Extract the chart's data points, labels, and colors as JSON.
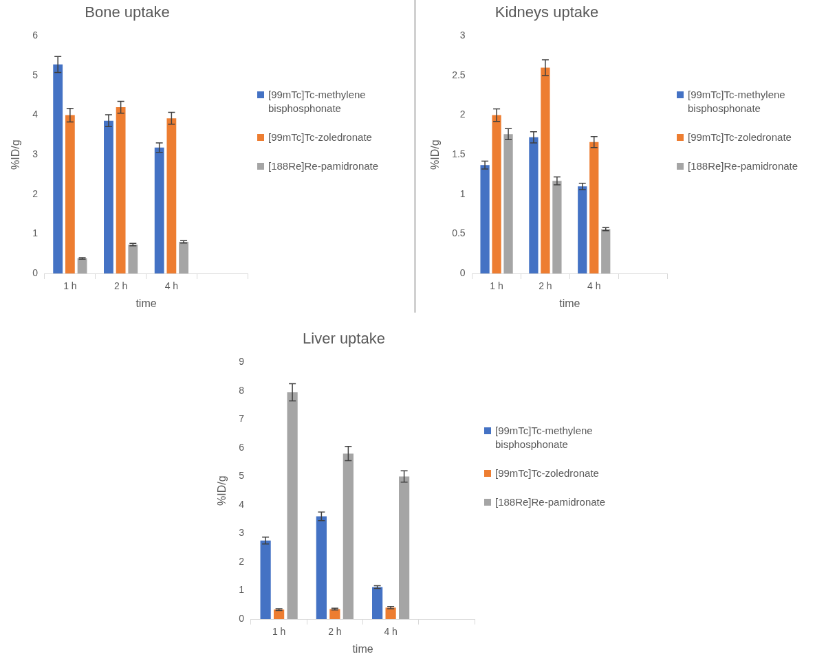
{
  "chart_data": [
    {
      "type": "bar",
      "title": "Bone uptake",
      "xlabel": "time",
      "ylabel": "%ID/g",
      "categories": [
        "1 h",
        "2 h",
        "4 h",
        null
      ],
      "ylim": [
        0,
        6
      ],
      "yticks": [
        0,
        1,
        2,
        3,
        4,
        5,
        6
      ],
      "grid": false,
      "legend": "right",
      "series": [
        {
          "name": "[99mTc]Tc-methylene bisphosphonate",
          "color": "#4472c4",
          "values": [
            5.28,
            3.86,
            3.18,
            null
          ],
          "errors": [
            0.2,
            0.15,
            0.12,
            null
          ]
        },
        {
          "name": "[99mTc]Tc-zoledronate",
          "color": "#ed7d31",
          "values": [
            4.0,
            4.2,
            3.92,
            null
          ],
          "errors": [
            0.17,
            0.15,
            0.15,
            null
          ]
        },
        {
          "name": "[188Re]Re-pamidronate",
          "color": "#a5a5a5",
          "values": [
            0.38,
            0.73,
            0.8,
            null
          ],
          "errors": [
            0.02,
            0.03,
            0.03,
            null
          ]
        }
      ]
    },
    {
      "type": "bar",
      "title": "Kidneys uptake",
      "xlabel": "time",
      "ylabel": "%ID/g",
      "categories": [
        "1 h",
        "2 h",
        "4 h",
        null
      ],
      "ylim": [
        0,
        3
      ],
      "yticks": [
        0,
        0.5,
        1,
        1.5,
        2,
        2.5,
        3
      ],
      "grid": false,
      "legend": "right",
      "series": [
        {
          "name": "[99mTc]Tc-methylene bisphosphonate",
          "color": "#4472c4",
          "values": [
            1.37,
            1.72,
            1.1,
            null
          ],
          "errors": [
            0.05,
            0.07,
            0.04,
            null
          ]
        },
        {
          "name": "[99mTc]Tc-zoledronate",
          "color": "#ed7d31",
          "values": [
            2.0,
            2.6,
            1.66,
            null
          ],
          "errors": [
            0.08,
            0.1,
            0.07,
            null
          ]
        },
        {
          "name": "[188Re]Re-pamidronate",
          "color": "#a5a5a5",
          "values": [
            1.76,
            1.17,
            0.56,
            null
          ],
          "errors": [
            0.07,
            0.05,
            0.02,
            null
          ]
        }
      ]
    },
    {
      "type": "bar",
      "title": "Liver uptake",
      "xlabel": "time",
      "ylabel": "%ID/g",
      "categories": [
        "1 h",
        "2 h",
        "4 h",
        null
      ],
      "ylim": [
        0,
        9
      ],
      "yticks": [
        0,
        1,
        2,
        3,
        4,
        5,
        6,
        7,
        8,
        9
      ],
      "grid": false,
      "legend": "right",
      "series": [
        {
          "name": "[99mTc]Tc-methylene bisphosphonate",
          "color": "#4472c4",
          "values": [
            2.75,
            3.6,
            1.12,
            null
          ],
          "errors": [
            0.12,
            0.15,
            0.05,
            null
          ]
        },
        {
          "name": "[99mTc]Tc-zoledronate",
          "color": "#ed7d31",
          "values": [
            0.33,
            0.35,
            0.4,
            null
          ],
          "errors": [
            0.03,
            0.03,
            0.04,
            null
          ]
        },
        {
          "name": "[188Re]Re-pamidronate",
          "color": "#a5a5a5",
          "values": [
            7.95,
            5.8,
            5.0,
            null
          ],
          "errors": [
            0.3,
            0.25,
            0.2,
            null
          ]
        }
      ]
    }
  ]
}
